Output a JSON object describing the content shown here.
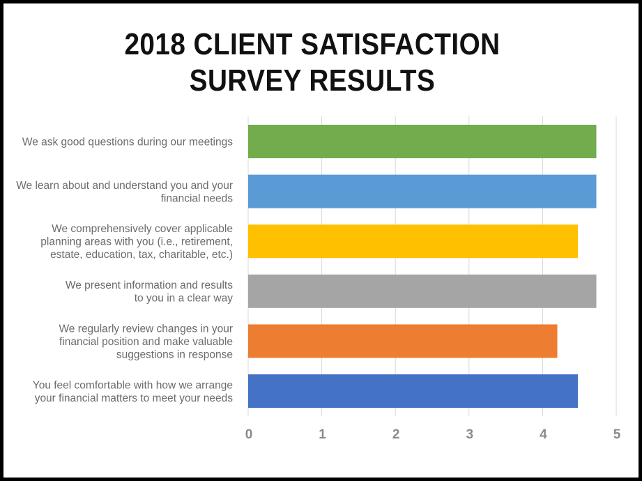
{
  "chart_data": {
    "type": "bar",
    "orientation": "horizontal",
    "title_lines": [
      "2018 CLIENT SATISFACTION",
      "SURVEY RESULTS"
    ],
    "categories": [
      [
        "We ask good questions during our meetings"
      ],
      [
        "We learn about and understand you and your",
        "financial needs"
      ],
      [
        "We comprehensively cover applicable",
        "planning areas with you (i.e., retirement,",
        "estate, education, tax, charitable, etc.)"
      ],
      [
        "We present information and results",
        "to you in a clear way"
      ],
      [
        "We regularly review changes in your",
        "financial position and make valuable",
        "suggestions in response"
      ],
      [
        "You feel comfortable with how we arrange",
        "your financial matters to meet your needs"
      ]
    ],
    "values": [
      4.73,
      4.73,
      4.48,
      4.73,
      4.2,
      4.48
    ],
    "colors": [
      "#72ac4d",
      "#5b9bd5",
      "#ffc000",
      "#a5a5a5",
      "#ed7d31",
      "#4472c4"
    ],
    "xlim": [
      0,
      5
    ],
    "xticks": [
      "0",
      "1",
      "2",
      "3",
      "4",
      "5"
    ],
    "grid": true,
    "legend": "none",
    "xlabel": "",
    "ylabel": ""
  }
}
